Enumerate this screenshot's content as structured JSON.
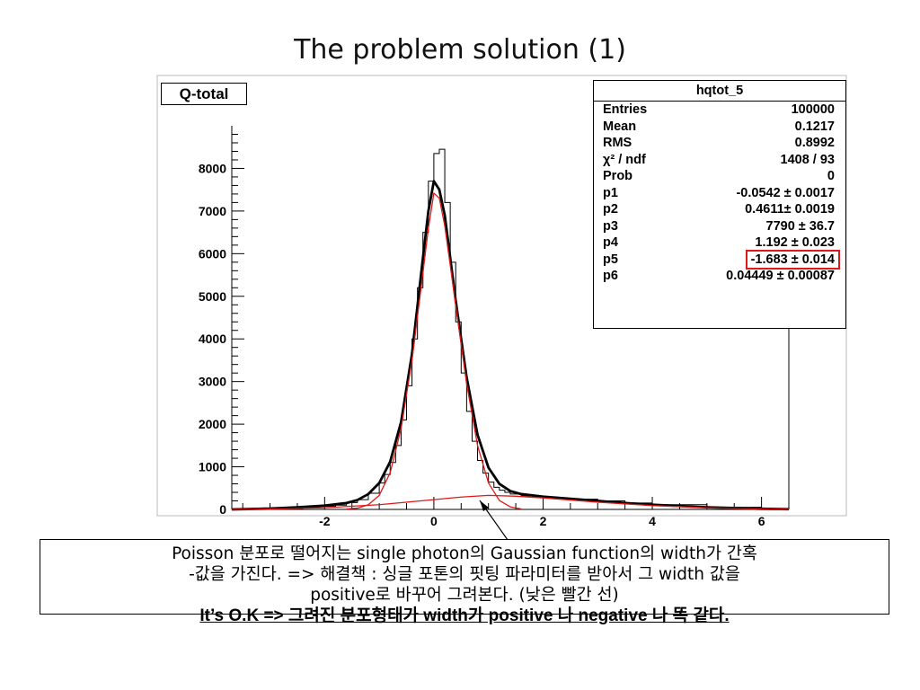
{
  "slide": {
    "title": "The problem solution (1)"
  },
  "histogram": {
    "title_box": "Q-total",
    "stats": {
      "name": "hqtot_5",
      "rows": [
        {
          "label": "Entries",
          "value": "100000"
        },
        {
          "label": "Mean",
          "value": "0.1217"
        },
        {
          "label": "RMS",
          "value": "0.8992"
        },
        {
          "label": "χ² / ndf",
          "value": "1408 / 93"
        },
        {
          "label": "Prob",
          "value": "0"
        },
        {
          "label": "p1",
          "value": "-0.0542 ± 0.0017"
        },
        {
          "label": "p2",
          "value": "0.4611± 0.0019"
        },
        {
          "label": "p3",
          "value": "7790 ± 36.7"
        },
        {
          "label": "p4",
          "value": "1.192 ± 0.023"
        },
        {
          "label": "p5",
          "value": "-1.683 ± 0.014",
          "highlight": true
        },
        {
          "label": "p6",
          "value": "0.04449 ± 0.00087"
        }
      ]
    },
    "highlight_color": "#e01818"
  },
  "note": {
    "line1": "Poisson 분포로 떨어지는 single photon의 Gaussian function의 width가 간혹",
    "line2": "-값을 가진다. => 해결책 : 싱글 포톤의 핏팅 파라미터를 받아서 그 width 값을",
    "line3": "positive로 바꾸어 그려본다. (낮은 빨간 선)",
    "line4": "It’s O.K => 그려진 분포형태가 width가 positive 나 negative 나 똑 같다."
  },
  "chart_data": {
    "type": "line",
    "xlim": [
      -3.7,
      6.5
    ],
    "ylim": [
      0,
      9000
    ],
    "x_ticks": [
      -2,
      0,
      2,
      4,
      6
    ],
    "y_ticks": [
      1000,
      2000,
      3000,
      4000,
      5000,
      6000,
      7000,
      8000
    ],
    "series": [
      {
        "style": "histogram",
        "color": "#000000",
        "x": [
          -3.7,
          -3.2,
          -2.8,
          -2.4,
          -2.0,
          -1.8,
          -1.6,
          -1.4,
          -1.2,
          -1.0,
          -0.9,
          -0.8,
          -0.7,
          -0.6,
          -0.5,
          -0.4,
          -0.3,
          -0.2,
          -0.1,
          0.0,
          0.1,
          0.2,
          0.3,
          0.4,
          0.5,
          0.6,
          0.7,
          0.8,
          0.9,
          1.0,
          1.1,
          1.2,
          1.3,
          1.4,
          1.6,
          1.8,
          2.0,
          2.4,
          3.0,
          3.5,
          4.0,
          5.0,
          6.0,
          6.5
        ],
        "y": [
          5,
          10,
          20,
          40,
          70,
          100,
          160,
          230,
          380,
          620,
          820,
          1100,
          1500,
          2100,
          2900,
          4000,
          5200,
          6500,
          7700,
          8350,
          8450,
          7200,
          5800,
          4400,
          3200,
          2300,
          1600,
          1150,
          850,
          640,
          520,
          450,
          400,
          360,
          320,
          290,
          270,
          240,
          200,
          150,
          110,
          50,
          10,
          3
        ]
      },
      {
        "style": "fit",
        "color": "#000000",
        "x": [
          -3.7,
          -3.0,
          -2.5,
          -2.0,
          -1.6,
          -1.4,
          -1.2,
          -1.0,
          -0.8,
          -0.6,
          -0.4,
          -0.2,
          -0.1,
          0.0,
          0.1,
          0.2,
          0.4,
          0.6,
          0.8,
          1.0,
          1.2,
          1.4,
          1.6,
          2.0,
          2.5,
          3.0,
          3.5,
          4.0,
          5.0,
          6.0,
          6.5
        ],
        "y": [
          0,
          20,
          50,
          90,
          150,
          220,
          360,
          620,
          1120,
          2050,
          3650,
          5900,
          7000,
          7700,
          7500,
          6900,
          4900,
          3100,
          1750,
          980,
          600,
          430,
          360,
          300,
          250,
          200,
          150,
          110,
          50,
          15,
          5
        ]
      },
      {
        "style": "fit",
        "color": "#e01818",
        "x": [
          -1.6,
          -1.4,
          -1.2,
          -1.0,
          -0.8,
          -0.6,
          -0.4,
          -0.2,
          -0.1,
          0.0,
          0.1,
          0.2,
          0.4,
          0.6,
          0.8,
          1.0,
          1.2,
          1.4,
          1.6
        ],
        "y": [
          10,
          30,
          110,
          330,
          860,
          1900,
          3500,
          5550,
          6600,
          7420,
          7300,
          6650,
          4800,
          2950,
          1500,
          620,
          210,
          60,
          10
        ]
      },
      {
        "style": "fit",
        "color": "#e01818",
        "x": [
          -3.7,
          -3.0,
          -2.0,
          -1.0,
          0.0,
          0.5,
          1.0,
          1.5,
          2.0,
          2.5,
          3.0,
          4.0,
          5.0,
          6.0,
          6.5
        ],
        "y": [
          0,
          10,
          40,
          110,
          230,
          290,
          330,
          310,
          270,
          220,
          170,
          90,
          40,
          10,
          5
        ]
      }
    ]
  }
}
